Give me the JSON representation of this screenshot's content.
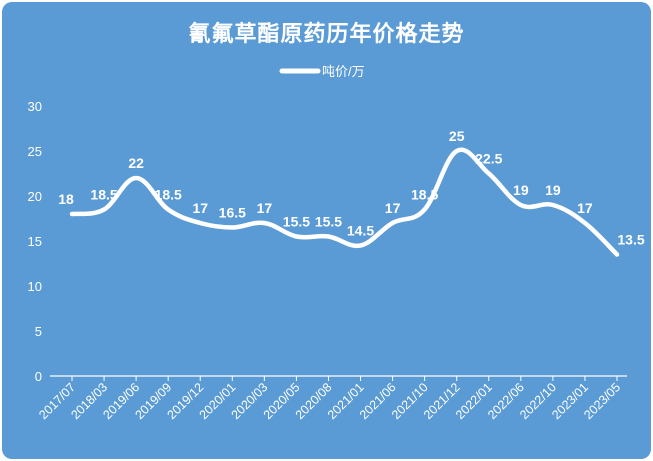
{
  "chart_data": {
    "type": "line",
    "title": "氰氟草酯原药历年价格走势",
    "xlabel": "",
    "ylabel": "",
    "ylim": [
      0,
      30
    ],
    "yticks": [
      0,
      5,
      10,
      15,
      20,
      25,
      30
    ],
    "grid": false,
    "legend": "top-center",
    "categories": [
      "2017/07",
      "2018/03",
      "2019/06",
      "2019/09",
      "2019/12",
      "2020/01",
      "2020/03",
      "2020/05",
      "2020/08",
      "2021/01",
      "2021/06",
      "2021/10",
      "2021/12",
      "2022/01",
      "2022/06",
      "2022/10",
      "2023/01",
      "2023/05"
    ],
    "series": [
      {
        "name": "吨价/万",
        "values": [
          18,
          18.5,
          22,
          18.5,
          17,
          16.5,
          17,
          15.5,
          15.5,
          14.5,
          17,
          18.5,
          25,
          22.5,
          19,
          19,
          17,
          13.5
        ],
        "labels": [
          "18",
          "18.5",
          "22",
          "18.5",
          "17",
          "16.5",
          "17",
          "15.5",
          "15.5",
          "14.5",
          "17",
          "18.5",
          "25",
          "22.5",
          "19",
          "19",
          "17",
          "13.5"
        ]
      }
    ],
    "colors": {
      "background": "#5b9bd5",
      "line": "#ffffff",
      "text": "#ffffff"
    }
  }
}
